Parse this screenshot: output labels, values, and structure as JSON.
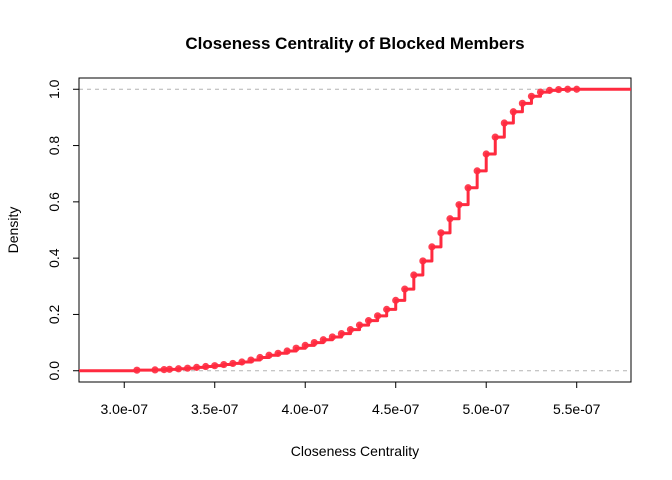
{
  "chart_data": {
    "type": "line",
    "title": "Closeness Centrality of Blocked Members",
    "xlabel": "Closeness Centrality",
    "ylabel": "Density",
    "xlim": [
      2.75e-07,
      5.8e-07
    ],
    "ylim": [
      -0.04,
      1.04
    ],
    "x_ticks": [
      3e-07,
      3.5e-07,
      4e-07,
      4.5e-07,
      5e-07,
      5.5e-07
    ],
    "x_tick_labels": [
      "3.0e-07",
      "3.5e-07",
      "4.0e-07",
      "4.5e-07",
      "5.0e-07",
      "5.5e-07"
    ],
    "y_ticks": [
      0.0,
      0.2,
      0.4,
      0.6,
      0.8,
      1.0
    ],
    "y_tick_labels": [
      "0.0",
      "0.2",
      "0.4",
      "0.6",
      "0.8",
      "1.0"
    ],
    "reference_lines": [
      0.0,
      1.0
    ],
    "color": "#ff2a3f",
    "reference_line_color": "#b3b3b3",
    "series": [
      {
        "x": [
          3.07e-07,
          3.17e-07,
          3.22e-07,
          3.25e-07,
          3.3e-07,
          3.35e-07,
          3.4e-07,
          3.45e-07,
          3.5e-07,
          3.55e-07,
          3.6e-07,
          3.65e-07,
          3.7e-07,
          3.75e-07,
          3.8e-07,
          3.85e-07,
          3.9e-07,
          3.95e-07,
          4e-07,
          4.05e-07,
          4.1e-07,
          4.15e-07,
          4.2e-07,
          4.25e-07,
          4.3e-07,
          4.35e-07,
          4.4e-07,
          4.45e-07,
          4.5e-07,
          4.55e-07,
          4.6e-07,
          4.65e-07,
          4.7e-07,
          4.75e-07,
          4.8e-07,
          4.85e-07,
          4.9e-07,
          4.95e-07,
          5e-07,
          5.05e-07,
          5.1e-07,
          5.15e-07,
          5.2e-07,
          5.25e-07,
          5.3e-07,
          5.35e-07,
          5.4e-07,
          5.45e-07,
          5.5e-07
        ],
        "y": [
          0.002,
          0.003,
          0.004,
          0.005,
          0.007,
          0.009,
          0.012,
          0.015,
          0.018,
          0.022,
          0.026,
          0.031,
          0.038,
          0.047,
          0.055,
          0.062,
          0.07,
          0.08,
          0.09,
          0.1,
          0.11,
          0.12,
          0.132,
          0.146,
          0.162,
          0.178,
          0.195,
          0.218,
          0.25,
          0.29,
          0.34,
          0.39,
          0.44,
          0.49,
          0.54,
          0.59,
          0.65,
          0.71,
          0.77,
          0.83,
          0.88,
          0.92,
          0.95,
          0.975,
          0.99,
          0.996,
          0.999,
          1.0,
          1.0
        ]
      }
    ]
  }
}
